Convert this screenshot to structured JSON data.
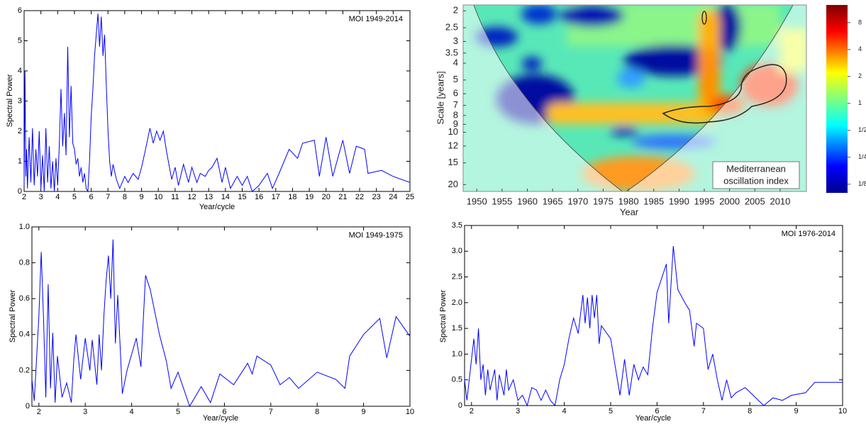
{
  "chart_data": [
    {
      "type": "line",
      "annotation": "MOI 1949-2014",
      "xlabel": "Year/cycle",
      "ylabel": "Spectral Power",
      "color": "#0000ff",
      "x": [
        2.0,
        2.05,
        2.1,
        2.15,
        2.2,
        2.3,
        2.4,
        2.5,
        2.6,
        2.7,
        2.8,
        2.9,
        3.0,
        3.1,
        3.2,
        3.3,
        3.4,
        3.5,
        3.6,
        3.7,
        3.8,
        3.9,
        4.0,
        4.1,
        4.2,
        4.3,
        4.4,
        4.5,
        4.6,
        4.7,
        4.8,
        4.9,
        5.0,
        5.1,
        5.2,
        5.3,
        5.4,
        5.5,
        5.6,
        5.7,
        5.8,
        5.9,
        6.0,
        6.1,
        6.2,
        6.3,
        6.4,
        6.5,
        6.6,
        6.7,
        6.8,
        6.9,
        7.0,
        7.1,
        7.2,
        7.3,
        7.5,
        7.7,
        8.0,
        8.2,
        8.5,
        8.8,
        9.0,
        9.2,
        9.5,
        9.7,
        9.9,
        10.1,
        10.3,
        10.5,
        10.8,
        11.0,
        11.2,
        11.5,
        11.8,
        12.0,
        12.3,
        12.5,
        12.8,
        13.0,
        13.2,
        13.5,
        13.8,
        14.0,
        14.3,
        14.7,
        15.0,
        15.3,
        15.6,
        16.0,
        16.5,
        16.8,
        17.2,
        17.8,
        18.3,
        18.6,
        19.3,
        19.6,
        20.0,
        20.4,
        21.0,
        21.4,
        21.8,
        22.3,
        22.5,
        23.3,
        24.0,
        25.0
      ],
      "values": [
        0.2,
        4.0,
        0.5,
        1.4,
        0.1,
        1.8,
        0.3,
        2.1,
        0.2,
        1.4,
        0.5,
        2.0,
        0.1,
        1.2,
        0.0,
        2.1,
        0.3,
        1.5,
        0.1,
        1.0,
        0.0,
        1.1,
        0.2,
        1.6,
        3.4,
        1.5,
        2.6,
        1.2,
        4.8,
        1.8,
        3.5,
        1.6,
        1.4,
        0.9,
        1.1,
        0.5,
        0.8,
        0.3,
        0.6,
        0.1,
        0.0,
        1.0,
        2.5,
        3.4,
        4.5,
        5.2,
        5.9,
        4.8,
        5.8,
        4.5,
        5.2,
        3.5,
        2.0,
        1.0,
        0.5,
        0.9,
        0.4,
        0.1,
        0.5,
        0.3,
        0.6,
        0.4,
        0.8,
        1.3,
        2.1,
        1.6,
        2.0,
        1.7,
        2.0,
        1.3,
        0.4,
        0.8,
        0.2,
        0.9,
        0.3,
        0.8,
        0.3,
        0.6,
        0.5,
        0.7,
        0.8,
        1.1,
        0.3,
        0.8,
        0.1,
        0.5,
        0.2,
        0.5,
        0.0,
        0.2,
        0.6,
        0.1,
        0.6,
        1.4,
        1.1,
        1.6,
        1.7,
        0.5,
        1.8,
        0.5,
        1.7,
        0.6,
        1.5,
        1.4,
        0.6,
        0.7,
        0.5,
        0.3
      ],
      "xlim": [
        2,
        25
      ],
      "xticks": [
        2,
        3,
        4,
        5,
        6,
        7,
        8,
        9,
        10,
        11,
        12,
        13,
        14,
        15,
        16,
        17,
        18,
        19,
        20,
        21,
        22,
        23,
        24,
        25
      ],
      "ylim": [
        0,
        6
      ],
      "yticks": [
        0,
        1,
        2,
        3,
        4,
        5,
        6
      ]
    },
    {
      "type": "heatmap",
      "annotation": "Mediterranean oscillation index",
      "xlabel": "Year",
      "ylabel": "Scale [years]",
      "xlim": [
        1947.3,
        2015.2
      ],
      "xticks": [
        1950,
        1955,
        1960,
        1965,
        1970,
        1975,
        1980,
        1985,
        1990,
        1995,
        2000,
        2005,
        2010
      ],
      "ylim": [
        1.85,
        21.9
      ],
      "yscale": "log",
      "y_inverted": true,
      "yticks": [
        2,
        2.5,
        3,
        3.5,
        4,
        5,
        6,
        7,
        8,
        9,
        10,
        12,
        15,
        20
      ],
      "colorbar": {
        "lim": [
          0.1,
          12.6
        ],
        "scale": "log",
        "ticks": [
          8,
          4,
          2,
          1,
          {
            "value": 0.5,
            "label": "1/2"
          },
          {
            "value": 0.25,
            "label": "1/4"
          },
          {
            "value": 0.125,
            "label": "1/8"
          }
        ]
      }
    },
    {
      "type": "line",
      "annotation": "MOI 1949-1975",
      "xlabel": "Year/cycle",
      "ylabel": "Spectral Power",
      "color": "#0000ff",
      "x": [
        1.85,
        1.9,
        2.0,
        2.05,
        2.1,
        2.15,
        2.2,
        2.25,
        2.3,
        2.35,
        2.4,
        2.5,
        2.6,
        2.7,
        2.75,
        2.8,
        2.9,
        3.0,
        3.1,
        3.15,
        3.25,
        3.3,
        3.35,
        3.4,
        3.45,
        3.5,
        3.55,
        3.6,
        3.65,
        3.7,
        3.8,
        3.9,
        4.1,
        4.2,
        4.3,
        4.4,
        4.6,
        4.75,
        4.85,
        5.0,
        5.25,
        5.5,
        5.7,
        5.8,
        5.9,
        6.2,
        6.5,
        6.6,
        6.7,
        7.0,
        7.2,
        7.4,
        7.6,
        8.0,
        8.4,
        8.6,
        8.7,
        9.0,
        9.35,
        9.5,
        9.7,
        10.0
      ],
      "values": [
        0.15,
        0.03,
        0.5,
        0.86,
        0.5,
        0.05,
        0.68,
        0.1,
        0.41,
        0.02,
        0.28,
        0.05,
        0.13,
        0.02,
        0.25,
        0.4,
        0.15,
        0.38,
        0.2,
        0.37,
        0.12,
        0.4,
        0.2,
        0.5,
        0.7,
        0.84,
        0.6,
        0.93,
        0.35,
        0.62,
        0.07,
        0.2,
        0.38,
        0.22,
        0.73,
        0.65,
        0.4,
        0.25,
        0.1,
        0.19,
        0.0,
        0.11,
        0.02,
        0.1,
        0.18,
        0.12,
        0.24,
        0.18,
        0.28,
        0.23,
        0.12,
        0.16,
        0.1,
        0.19,
        0.15,
        0.1,
        0.28,
        0.4,
        0.49,
        0.27,
        0.5,
        0.39
      ],
      "xlim": [
        1.85,
        10
      ],
      "xticks": [
        2,
        3,
        4,
        5,
        6,
        7,
        8,
        9,
        10
      ],
      "ylim": [
        0,
        1
      ],
      "yticks": [
        0,
        0.2,
        0.4,
        0.6,
        0.8,
        {
          "value": 1,
          "label": "1.0"
        }
      ]
    },
    {
      "type": "line",
      "annotation": "MOI 1976-2014",
      "xlabel": "Year/cycle",
      "ylabel": "Spectral Power",
      "color": "#0000ff",
      "x": [
        1.85,
        1.9,
        2.0,
        2.05,
        2.1,
        2.15,
        2.2,
        2.25,
        2.3,
        2.35,
        2.4,
        2.5,
        2.55,
        2.6,
        2.7,
        2.75,
        2.8,
        2.9,
        3.0,
        3.1,
        3.2,
        3.3,
        3.4,
        3.5,
        3.6,
        3.7,
        3.8,
        3.9,
        4.0,
        4.1,
        4.2,
        4.3,
        4.4,
        4.45,
        4.5,
        4.55,
        4.6,
        4.65,
        4.7,
        4.75,
        4.8,
        5.0,
        5.2,
        5.3,
        5.4,
        5.5,
        5.6,
        5.7,
        5.8,
        5.9,
        6.0,
        6.2,
        6.25,
        6.35,
        6.45,
        6.6,
        6.7,
        6.8,
        6.85,
        7.0,
        7.1,
        7.2,
        7.3,
        7.4,
        7.5,
        7.6,
        7.7,
        7.9,
        8.3,
        8.5,
        8.7,
        8.9,
        9.2,
        9.4,
        10.0
      ],
      "values": [
        0.5,
        0.1,
        0.9,
        1.3,
        0.8,
        1.5,
        0.5,
        0.8,
        0.2,
        0.7,
        0.3,
        0.7,
        0.1,
        0.6,
        0.2,
        0.7,
        0.3,
        0.5,
        0.1,
        0.2,
        0.0,
        0.35,
        0.3,
        0.1,
        0.3,
        0.1,
        0.0,
        0.5,
        0.8,
        1.3,
        1.7,
        1.4,
        2.15,
        1.6,
        2.1,
        1.5,
        2.15,
        1.7,
        2.15,
        1.2,
        1.55,
        1.3,
        0.2,
        0.9,
        0.2,
        0.8,
        0.5,
        0.75,
        0.6,
        1.5,
        2.2,
        2.75,
        1.6,
        3.1,
        2.25,
        2.0,
        1.85,
        1.15,
        1.6,
        1.5,
        0.7,
        1.0,
        0.5,
        0.1,
        0.5,
        0.15,
        0.25,
        0.35,
        0.0,
        0.15,
        0.1,
        0.2,
        0.25,
        0.45,
        0.45
      ],
      "xlim": [
        1.85,
        10
      ],
      "xticks": [
        2,
        3,
        4,
        5,
        6,
        7,
        8,
        9,
        10
      ],
      "ylim": [
        0,
        3.5
      ],
      "yticks": [
        0,
        0.5,
        {
          "value": 1,
          "label": "1.0"
        },
        1.5,
        {
          "value": 2,
          "label": "2.0"
        },
        2.5,
        {
          "value": 3,
          "label": "3.0"
        },
        3.5
      ]
    }
  ]
}
